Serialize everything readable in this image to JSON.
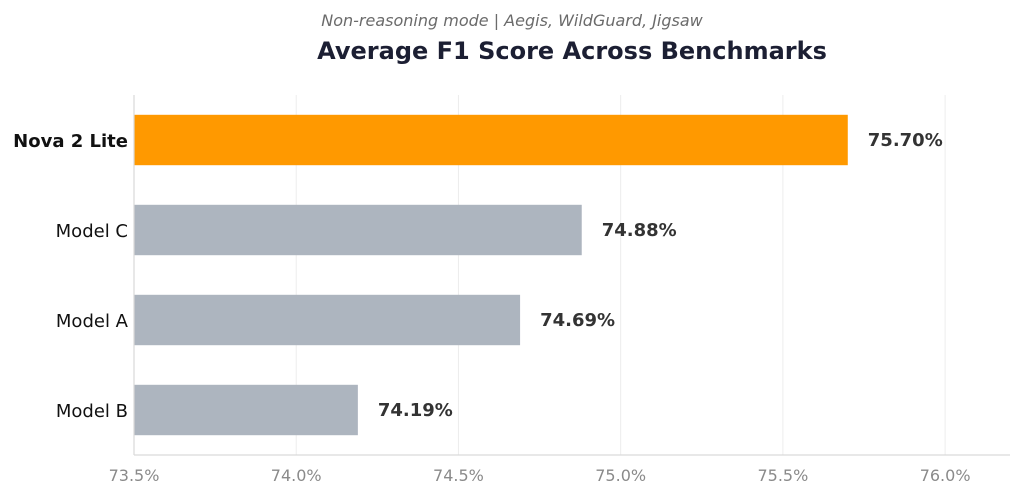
{
  "chart_data": {
    "type": "bar",
    "orientation": "horizontal",
    "subtitle": "Non-reasoning mode  |  Aegis, WildGuard, Jigsaw",
    "title": "Average F1 Score Across Benchmarks",
    "categories": [
      "Nova 2 Lite",
      "Model C",
      "Model A",
      "Model B"
    ],
    "values": [
      75.7,
      74.88,
      74.69,
      74.19
    ],
    "value_labels": [
      "75.70%",
      "74.88%",
      "74.69%",
      "74.19%"
    ],
    "highlight_category": "Nova 2 Lite",
    "xlim": [
      73.5,
      76.2
    ],
    "xticks": [
      73.5,
      74.0,
      74.5,
      75.0,
      75.5,
      76.0
    ],
    "xtick_labels": [
      "73.5%",
      "74.0%",
      "74.5%",
      "75.0%",
      "75.5%",
      "76.0%"
    ],
    "xlabel": "",
    "ylabel": "",
    "grid": "vertical",
    "legend": "none",
    "colors": {
      "highlight": "#ff9900",
      "default": "#adb5bf"
    }
  }
}
